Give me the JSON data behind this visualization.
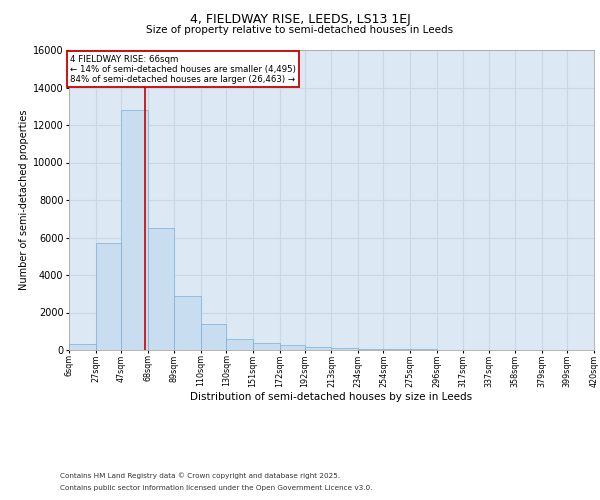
{
  "title_line1": "4, FIELDWAY RISE, LEEDS, LS13 1EJ",
  "title_line2": "Size of property relative to semi-detached houses in Leeds",
  "xlabel": "Distribution of semi-detached houses by size in Leeds",
  "ylabel": "Number of semi-detached properties",
  "footer_line1": "Contains HM Land Registry data © Crown copyright and database right 2025.",
  "footer_line2": "Contains public sector information licensed under the Open Government Licence v3.0.",
  "annotation_title": "4 FIELDWAY RISE: 66sqm",
  "annotation_line1": "← 14% of semi-detached houses are smaller (4,495)",
  "annotation_line2": "84% of semi-detached houses are larger (26,463) →",
  "property_size": 66,
  "bar_left_edges": [
    6,
    27,
    47,
    68,
    89,
    110,
    130,
    151,
    172,
    192,
    213,
    234,
    254,
    275,
    296,
    317,
    337,
    358,
    379,
    399
  ],
  "bar_widths": [
    21,
    20,
    21,
    21,
    21,
    20,
    21,
    21,
    20,
    21,
    21,
    20,
    21,
    21,
    21,
    20,
    21,
    21,
    20,
    21
  ],
  "bar_heights": [
    300,
    5700,
    12800,
    6500,
    2900,
    1400,
    600,
    350,
    250,
    180,
    120,
    80,
    50,
    30,
    20,
    10,
    5,
    5,
    3,
    2
  ],
  "bar_color": "#c9ddf0",
  "bar_edgecolor": "#7bafd4",
  "vline_color": "#cc0000",
  "vline_x": 66,
  "ylim": [
    0,
    16000
  ],
  "yticks": [
    0,
    2000,
    4000,
    6000,
    8000,
    10000,
    12000,
    14000,
    16000
  ],
  "tick_labels": [
    "6sqm",
    "27sqm",
    "47sqm",
    "68sqm",
    "89sqm",
    "110sqm",
    "130sqm",
    "151sqm",
    "172sqm",
    "192sqm",
    "213sqm",
    "234sqm",
    "254sqm",
    "275sqm",
    "296sqm",
    "317sqm",
    "337sqm",
    "358sqm",
    "379sqm",
    "399sqm",
    "420sqm"
  ],
  "annotation_box_color": "#cc0000",
  "grid_color": "#c8d8e8",
  "background_color": "#dce8f4"
}
